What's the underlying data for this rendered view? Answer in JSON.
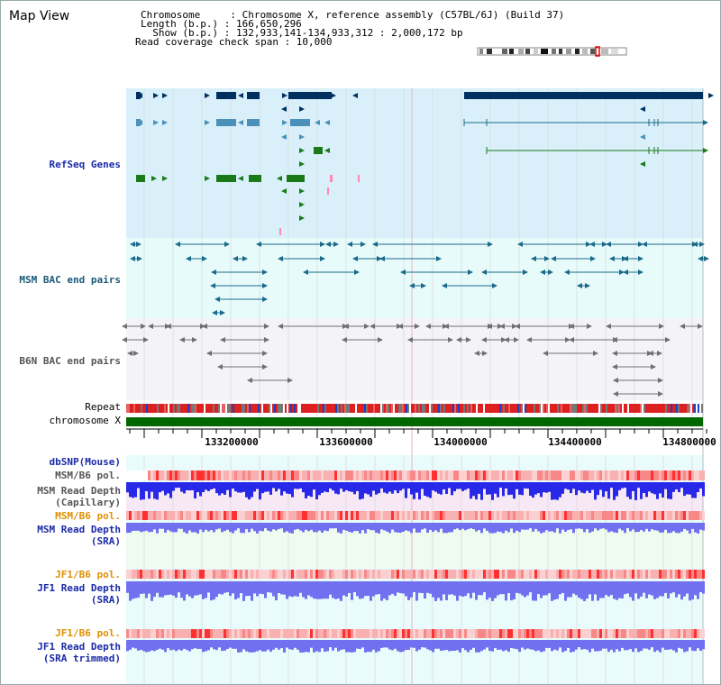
{
  "title": "Map View",
  "header": {
    "line1": "Chromosome     : Chromosome X, reference assembly (C57BL/6J) (Build 37)",
    "line2": "Length (b.p.) : 166,650,296",
    "line3": "  Show (b.p.) : 132,933,141-134,933,312 : 2,000,172 bp",
    "line4": "Read coverage check span : 10,000"
  },
  "tracks": {
    "refseq": "RefSeq Genes",
    "msm_bac": "MSM BAC end pairs",
    "b6n_bac": "B6N BAC end pairs",
    "repeat": "Repeat",
    "chromosome": "chromosome X",
    "dbsnp": "dbSNP(Mouse)",
    "msm_b6_pol_1": "MSM/B6 pol.",
    "msm_depth_cap_1": "MSM Read Depth",
    "msm_depth_cap_2": "(Capillary)",
    "msm_b6_pol_2": "MSM/B6 pol.",
    "msm_depth_sra_1": "MSM Read Depth",
    "msm_depth_sra_2": "(SRA)",
    "jf1_b6_pol_1": "JF1/B6 pol.",
    "jf1_depth_sra_1": "JF1 Read Depth",
    "jf1_depth_sra_2": "(SRA)",
    "jf1_b6_pol_2": "JF1/B6 pol.",
    "jf1_depth_trim_1": "JF1 Read Depth",
    "jf1_depth_trim_2": "(SRA trimmed)"
  },
  "axis": {
    "ticks": [
      "133200000",
      "133600000",
      "134000000",
      "134400000",
      "134800000"
    ]
  },
  "colors": {
    "refseq_bg": "#d9f0fa",
    "bac_bg": "#e8fbfb",
    "b6n_bg": "#f4f4f8",
    "navy": "#003060",
    "blue_gene": "#4a90b8",
    "green_gene": "#1a7a1a",
    "teal": "#1a6a8a",
    "gray": "#707070",
    "chromosome_bar": "#006600",
    "depth_blue": "#2828e8",
    "depth_light": "#7070f0"
  }
}
